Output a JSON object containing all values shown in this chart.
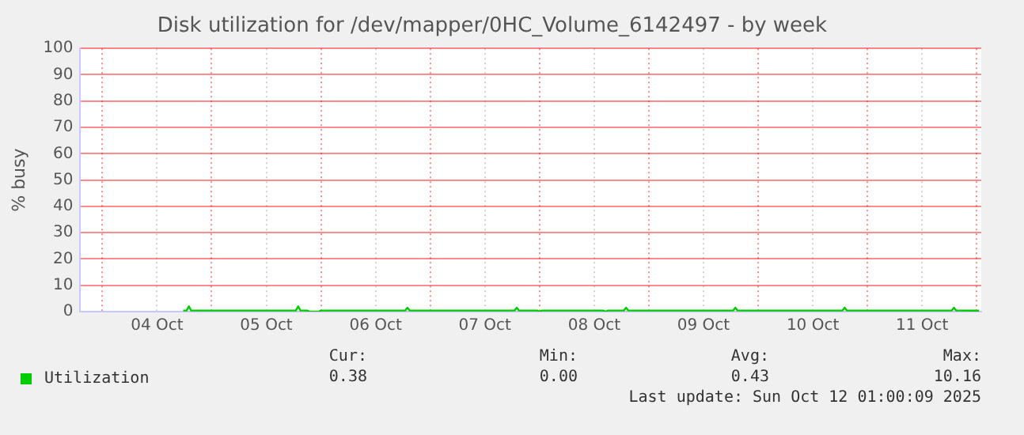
{
  "chart_data": {
    "type": "line",
    "title": "Disk utilization for /dev/mapper/0HC_Volume_6142497 - by week",
    "ylabel": "% busy",
    "x": [
      "2025-10-04T17:45",
      "2025-10-04T18:30",
      "2025-10-04T19:00",
      "2025-10-04T19:30",
      "2025-10-05T18:30",
      "2025-10-05T19:00",
      "2025-10-05T19:30",
      "2025-10-05T21:00",
      "2025-10-05T21:30",
      "2025-10-05T23:30",
      "2025-10-06T00:00",
      "2025-10-06T18:30",
      "2025-10-06T19:00",
      "2025-10-06T19:30",
      "2025-10-07T18:30",
      "2025-10-07T19:00",
      "2025-10-07T19:30",
      "2025-10-07T23:30",
      "2025-10-08T00:00",
      "2025-10-08T00:30",
      "2025-10-08T14:00",
      "2025-10-08T14:30",
      "2025-10-08T15:00",
      "2025-10-08T18:30",
      "2025-10-08T19:00",
      "2025-10-08T19:30",
      "2025-10-09T18:30",
      "2025-10-09T19:00",
      "2025-10-09T19:30",
      "2025-10-10T18:30",
      "2025-10-10T19:00",
      "2025-10-10T19:30",
      "2025-10-11T18:30",
      "2025-10-11T19:00",
      "2025-10-11T19:30",
      "2025-10-12T00:30"
    ],
    "series": [
      {
        "name": "Utilization",
        "color": "#00cc00",
        "values": [
          0.4,
          0.4,
          2,
          0.4,
          0.4,
          2,
          0.4,
          0.4,
          0,
          0,
          0.4,
          0.4,
          1.5,
          0.4,
          0.4,
          1.5,
          0.4,
          0.4,
          0,
          0.4,
          0.4,
          0,
          0.4,
          0.4,
          1.5,
          0.4,
          0.4,
          1.5,
          0.4,
          0.4,
          1.5,
          0.4,
          0.4,
          1.5,
          0.4,
          0.38
        ]
      }
    ],
    "xlim": [
      "2025-10-03T19:00",
      "2025-10-12T01:00"
    ],
    "xticks": [
      {
        "value": "2025-10-04T00:00",
        "label": null
      },
      {
        "value": "2025-10-04T12:00",
        "label": "04 Oct"
      },
      {
        "value": "2025-10-05T00:00",
        "label": null
      },
      {
        "value": "2025-10-05T12:00",
        "label": "05 Oct"
      },
      {
        "value": "2025-10-06T00:00",
        "label": null
      },
      {
        "value": "2025-10-06T12:00",
        "label": "06 Oct"
      },
      {
        "value": "2025-10-07T00:00",
        "label": null
      },
      {
        "value": "2025-10-07T12:00",
        "label": "07 Oct"
      },
      {
        "value": "2025-10-08T00:00",
        "label": null
      },
      {
        "value": "2025-10-08T12:00",
        "label": "08 Oct"
      },
      {
        "value": "2025-10-09T00:00",
        "label": null
      },
      {
        "value": "2025-10-09T12:00",
        "label": "09 Oct"
      },
      {
        "value": "2025-10-10T00:00",
        "label": null
      },
      {
        "value": "2025-10-10T12:00",
        "label": "10 Oct"
      },
      {
        "value": "2025-10-11T00:00",
        "label": null
      },
      {
        "value": "2025-10-11T12:00",
        "label": "11 Oct"
      },
      {
        "value": "2025-10-12T00:00",
        "label": null
      }
    ],
    "ylim": [
      0,
      100
    ],
    "yticks": [
      0,
      10,
      20,
      30,
      40,
      50,
      60,
      70,
      80,
      90,
      100
    ],
    "grid": true,
    "legend": "bottom left",
    "marker": "none",
    "line_style": "solid",
    "annotations": [
      "Cur:",
      "0.38",
      "Min:",
      "0.00",
      "Avg:",
      "0.43",
      "Max:",
      "10.16",
      "Last update: Sun Oct 12 01:00:09 2025"
    ]
  }
}
